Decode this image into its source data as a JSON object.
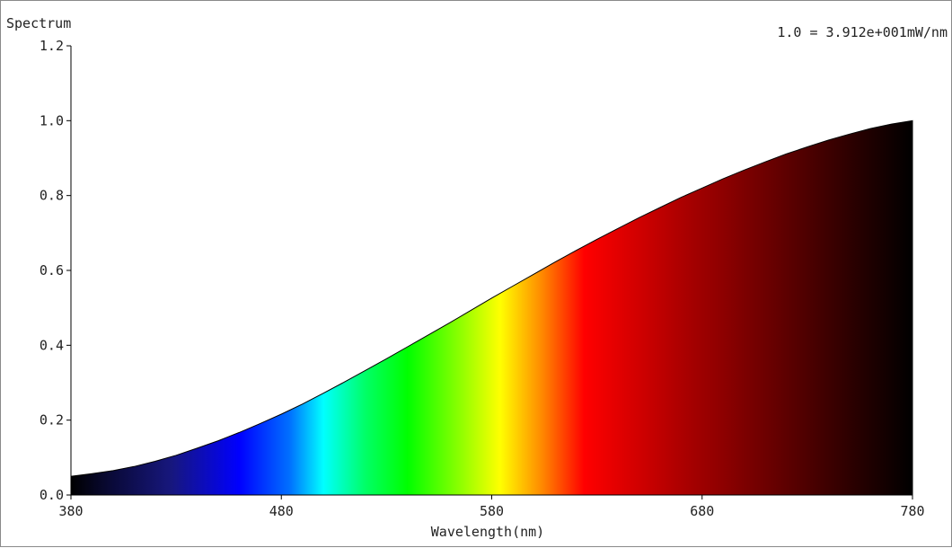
{
  "chart_data": {
    "type": "area",
    "title": "Spectrum",
    "xlabel": "Wavelength(nm)",
    "ylabel": "",
    "scale_note": "1.0 = 3.912e+001mW/nm",
    "xlim": [
      380,
      780
    ],
    "ylim": [
      0,
      1.2
    ],
    "x_ticks": [
      "380",
      "480",
      "580",
      "680",
      "780"
    ],
    "y_ticks": [
      "0.0",
      "0.2",
      "0.4",
      "0.6",
      "0.8",
      "1.0",
      "1.2"
    ],
    "grid": false,
    "fill": "wavelength color gradient",
    "series": [
      {
        "x": [
          380,
          390,
          400,
          410,
          420,
          430,
          440,
          450,
          460,
          470,
          480,
          490,
          500,
          510,
          520,
          530,
          540,
          550,
          560,
          570,
          580,
          590,
          600,
          610,
          620,
          630,
          640,
          650,
          660,
          670,
          680,
          690,
          700,
          710,
          720,
          730,
          740,
          750,
          760,
          770,
          780
        ],
        "values": [
          0.05,
          0.057,
          0.065,
          0.076,
          0.09,
          0.106,
          0.125,
          0.145,
          0.167,
          0.191,
          0.216,
          0.243,
          0.272,
          0.302,
          0.333,
          0.364,
          0.396,
          0.428,
          0.46,
          0.493,
          0.526,
          0.558,
          0.59,
          0.622,
          0.653,
          0.683,
          0.712,
          0.741,
          0.768,
          0.795,
          0.82,
          0.845,
          0.868,
          0.89,
          0.911,
          0.93,
          0.948,
          0.964,
          0.979,
          0.991,
          1.0
        ]
      }
    ]
  }
}
